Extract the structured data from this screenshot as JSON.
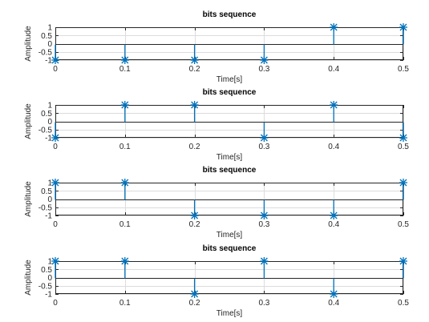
{
  "chart_data": [
    {
      "type": "stem",
      "title": "bits sequence",
      "xlabel": "Time[s]",
      "ylabel": "Amplitude",
      "x": [
        0,
        0.1,
        0.2,
        0.3,
        0.4,
        0.5
      ],
      "y": [
        -1,
        -1,
        -1,
        -1,
        1,
        1
      ],
      "xlim": [
        0,
        0.5
      ],
      "ylim": [
        -1,
        1
      ],
      "xticks": [
        "0",
        "0.1",
        "0.2",
        "0.3",
        "0.4",
        "0.5"
      ],
      "yticks": [
        "-1",
        "-0.5",
        "0",
        "0.5",
        "1"
      ],
      "grid": true,
      "marker": "asterisk",
      "color": "#0072bd"
    },
    {
      "type": "stem",
      "title": "bits sequence",
      "xlabel": "Time[s]",
      "ylabel": "Amplitude",
      "x": [
        0,
        0.1,
        0.2,
        0.3,
        0.4,
        0.5
      ],
      "y": [
        -1,
        1,
        1,
        -1,
        1,
        -1
      ],
      "xlim": [
        0,
        0.5
      ],
      "ylim": [
        -1,
        1
      ],
      "xticks": [
        "0",
        "0.1",
        "0.2",
        "0.3",
        "0.4",
        "0.5"
      ],
      "yticks": [
        "-1",
        "-0.5",
        "0",
        "0.5",
        "1"
      ],
      "grid": true,
      "marker": "asterisk",
      "color": "#0072bd"
    },
    {
      "type": "stem",
      "title": "bits sequence",
      "xlabel": "Time[s]",
      "ylabel": "Amplitude",
      "x": [
        0,
        0.1,
        0.2,
        0.3,
        0.4,
        0.5
      ],
      "y": [
        1,
        1,
        -1,
        -1,
        -1,
        1
      ],
      "xlim": [
        0,
        0.5
      ],
      "ylim": [
        -1,
        1
      ],
      "xticks": [
        "0",
        "0.1",
        "0.2",
        "0.3",
        "0.4",
        "0.5"
      ],
      "yticks": [
        "-1",
        "-0.5",
        "0",
        "0.5",
        "1"
      ],
      "grid": true,
      "marker": "asterisk",
      "color": "#0072bd"
    },
    {
      "type": "stem",
      "title": "bits sequence",
      "xlabel": "Time[s]",
      "ylabel": "Amplitude",
      "x": [
        0,
        0.1,
        0.2,
        0.3,
        0.4,
        0.5
      ],
      "y": [
        1,
        1,
        -1,
        1,
        -1,
        1
      ],
      "xlim": [
        0,
        0.5
      ],
      "ylim": [
        -1,
        1
      ],
      "xticks": [
        "0",
        "0.1",
        "0.2",
        "0.3",
        "0.4",
        "0.5"
      ],
      "yticks": [
        "-1",
        "-0.5",
        "0",
        "0.5",
        "1"
      ],
      "grid": true,
      "marker": "asterisk",
      "color": "#0072bd"
    }
  ]
}
